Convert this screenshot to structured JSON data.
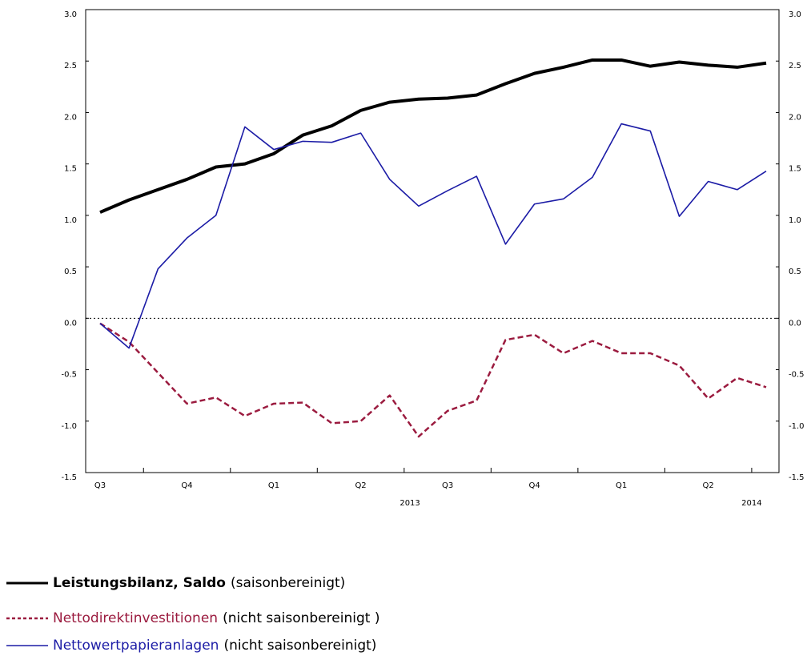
{
  "chart_data": {
    "type": "line",
    "categories": [
      "Q3",
      null,
      null,
      "Q4",
      null,
      null,
      "Q1",
      null,
      null,
      "Q2",
      null,
      null,
      "Q3",
      null,
      null,
      "Q4",
      null,
      null,
      "Q1",
      null,
      null,
      "Q2",
      null,
      null
    ],
    "year_labels": [
      "2013",
      "2014"
    ],
    "ylim": [
      -1.5,
      3.0
    ],
    "yticks": [
      {
        "value": 3.0,
        "label": "3.0"
      },
      {
        "value": 2.5,
        "label": "2.5"
      },
      {
        "value": 2.0,
        "label": "2.0"
      },
      {
        "value": 1.5,
        "label": "1.5"
      },
      {
        "value": 1.0,
        "label": "1.0"
      },
      {
        "value": 0.5,
        "label": "0.5"
      },
      {
        "value": 0.0,
        "label": "0.0"
      },
      {
        "value": -0.5,
        "label": "-0.5"
      },
      {
        "value": -1.0,
        "label": "-1.0"
      },
      {
        "value": -1.5,
        "label": "-1.5"
      }
    ],
    "zero_line": true,
    "series": [
      {
        "name": "Leistungsbilanz, Saldo",
        "note": "(saisonbereinigt)",
        "color": "#000000",
        "style": "thick",
        "values": [
          1.03,
          1.15,
          1.25,
          1.35,
          1.47,
          1.5,
          1.6,
          1.78,
          1.87,
          2.02,
          2.1,
          2.13,
          2.14,
          2.17,
          2.28,
          2.38,
          2.44,
          2.51,
          2.51,
          2.45,
          2.49,
          2.46,
          2.44,
          2.48
        ]
      },
      {
        "name": "Nettodirektinvestitionen",
        "note": "(nicht saisonbereinigt )",
        "color": "#9b1b3f",
        "style": "dashed",
        "values": [
          -0.05,
          -0.23,
          -0.53,
          -0.83,
          -0.77,
          -0.95,
          -0.83,
          -0.82,
          -1.02,
          -1.0,
          -0.75,
          -1.15,
          -0.9,
          -0.8,
          -0.21,
          -0.16,
          -0.34,
          -0.22,
          -0.34,
          -0.34,
          -0.46,
          -0.78,
          -0.58,
          -0.67
        ]
      },
      {
        "name": "Nettowertpapieranlagen",
        "note": "(nicht saisonbereinigt)",
        "color": "#1c1ca6",
        "style": "thin",
        "values": [
          -0.05,
          -0.29,
          0.48,
          0.78,
          1.0,
          1.86,
          1.64,
          1.72,
          1.71,
          1.8,
          1.35,
          1.09,
          1.24,
          1.38,
          0.72,
          1.11,
          1.16,
          1.37,
          1.89,
          1.82,
          0.99,
          1.33,
          1.25,
          1.43
        ]
      }
    ]
  }
}
